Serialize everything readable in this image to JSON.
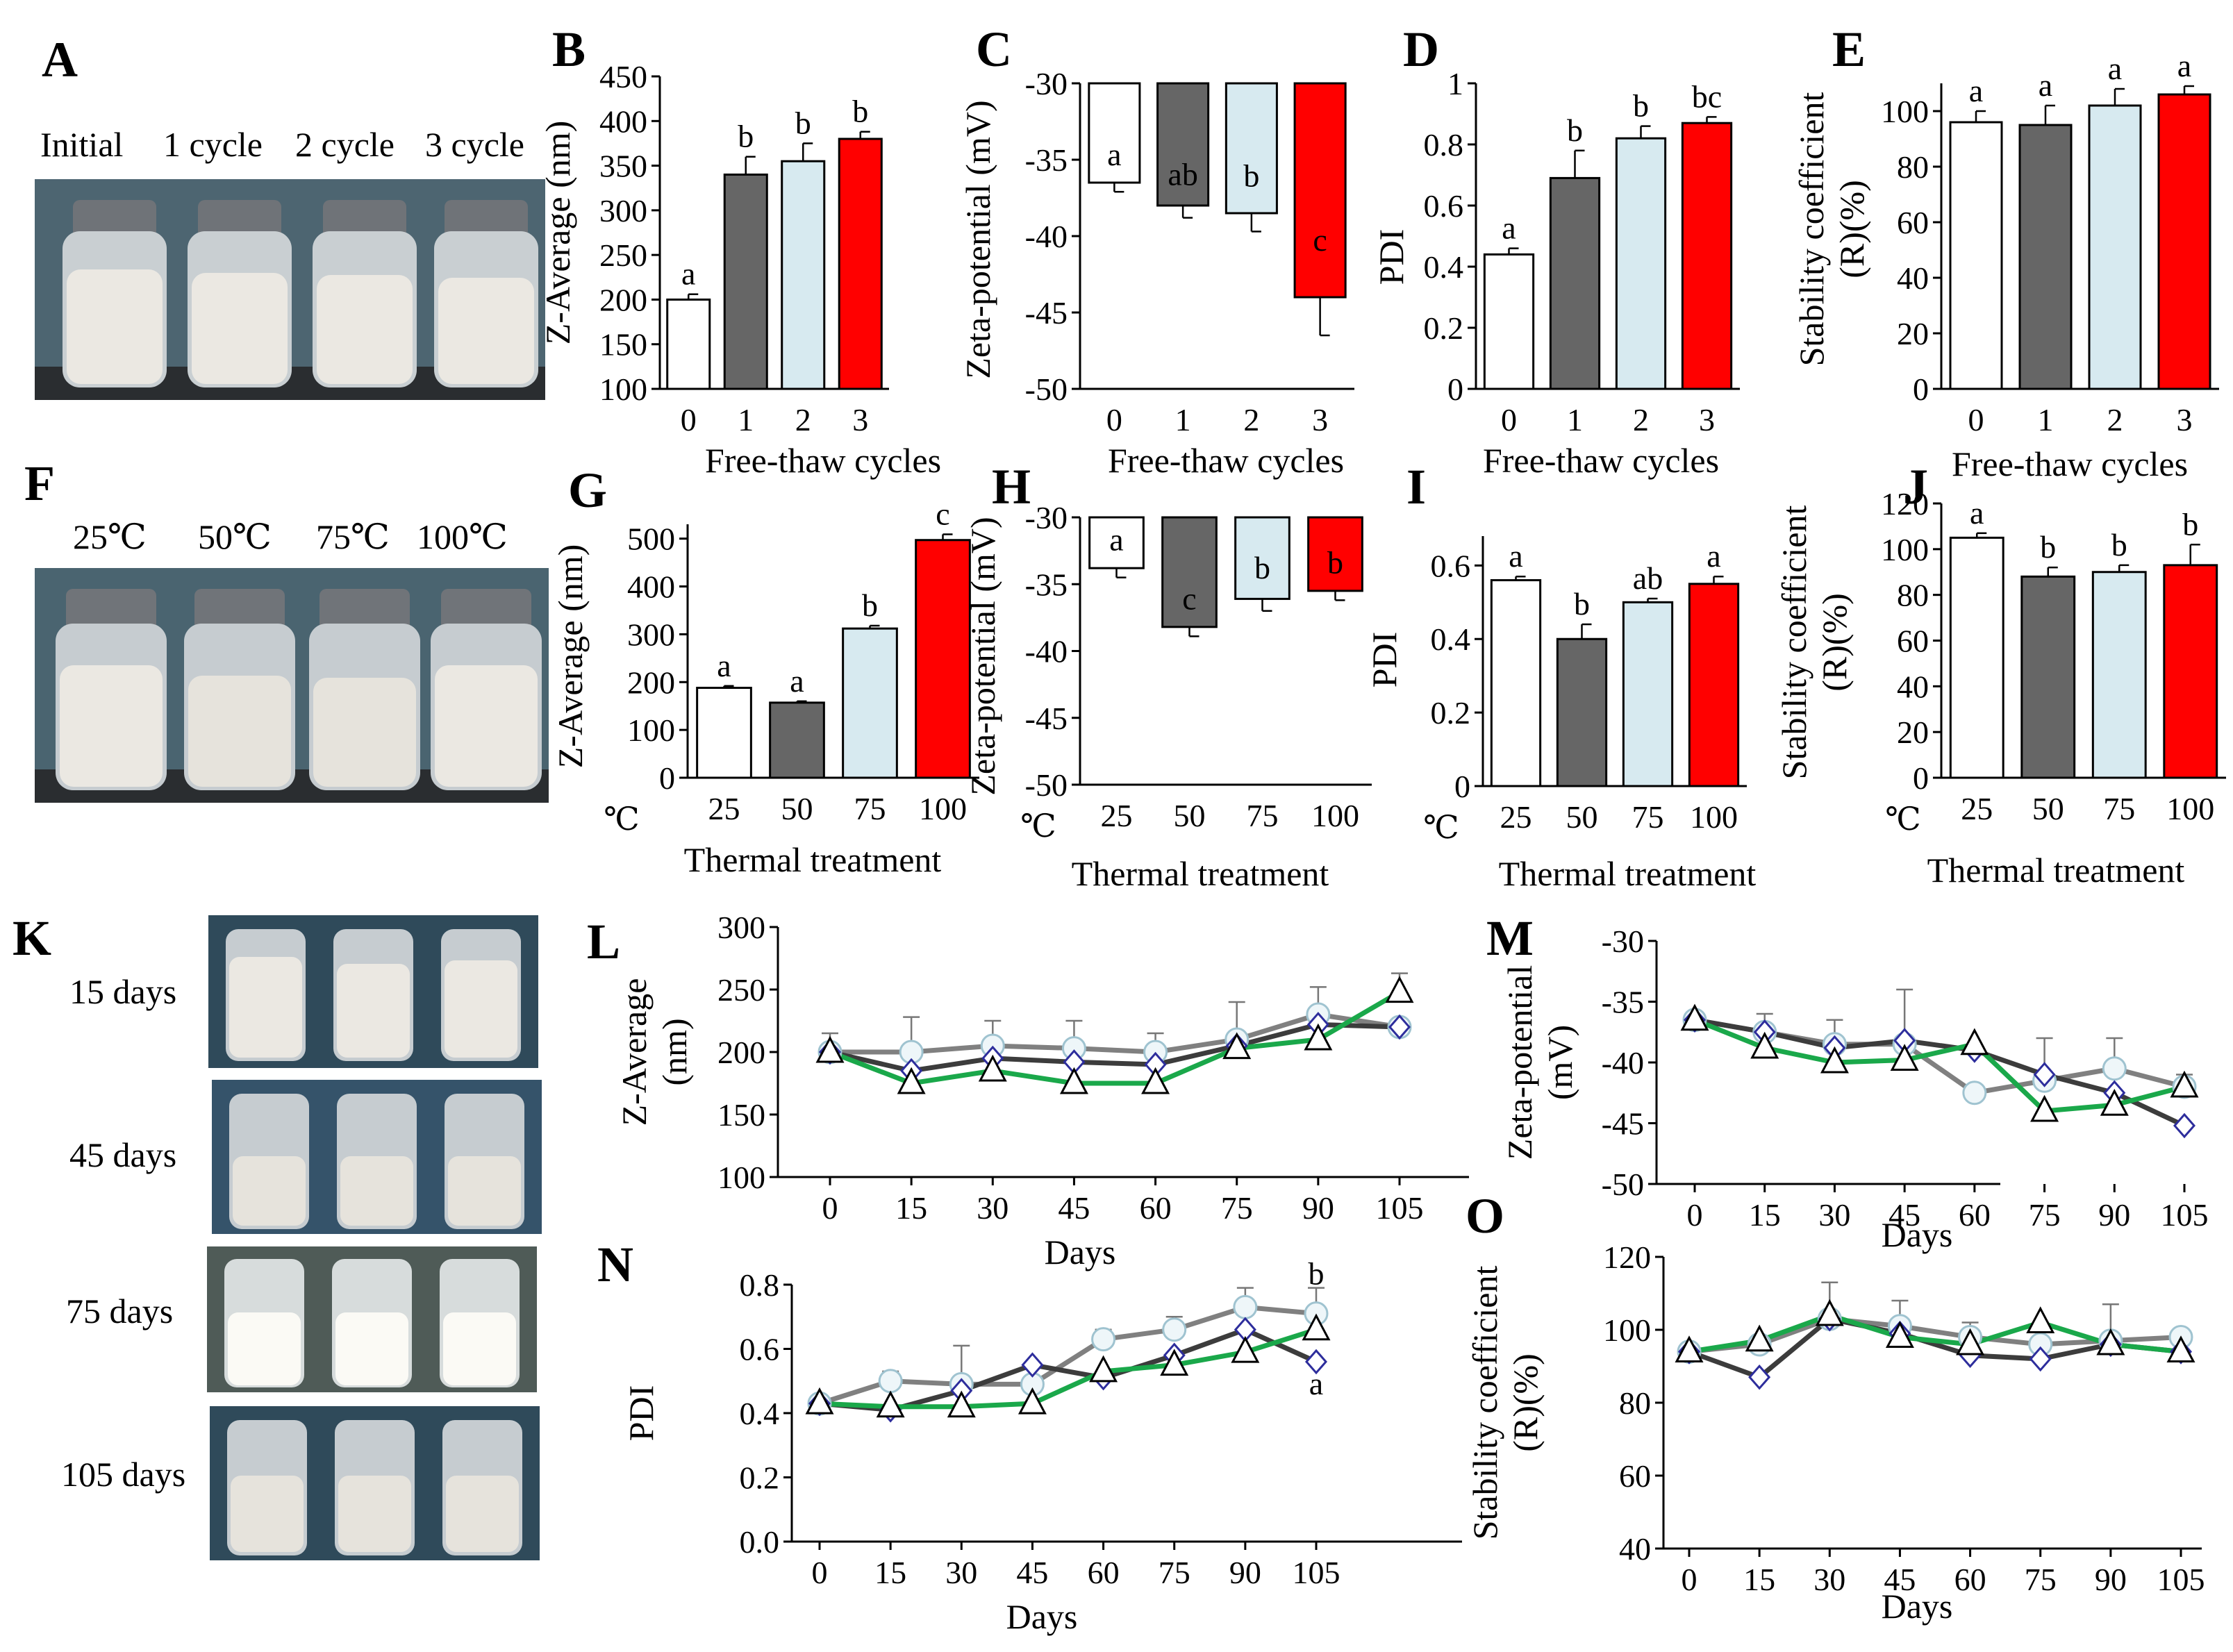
{
  "colors": {
    "white": "#ffffff",
    "gray": "#666666",
    "lightblue": "#d7eaf0",
    "red": "#ff0000",
    "green": "#1aa84a",
    "darkgray": "#3c3c3c",
    "midgray": "#808080",
    "navy": "#2d2d9c",
    "circle_fill": "#eef6f9"
  },
  "panels": {
    "A": {
      "letter": "A",
      "labels": [
        "Initial",
        "1 cycle",
        "2 cycle",
        "3 cycle"
      ]
    },
    "F": {
      "letter": "F",
      "labels": [
        "25℃",
        "50℃",
        "75℃",
        "100℃"
      ]
    },
    "K": {
      "letter": "K",
      "labels": [
        "15 days",
        "45 days",
        "75 days",
        "105 days"
      ]
    }
  },
  "chart_data": [
    {
      "panel": "B",
      "type": "bar",
      "categories": [
        "0",
        "1",
        "2",
        "3"
      ],
      "values": [
        200,
        340,
        355,
        380
      ],
      "errors": [
        6,
        20,
        20,
        8
      ],
      "letters": [
        "a",
        "b",
        "b",
        "b"
      ],
      "ylabel": "Z-Average (nm)",
      "xlabel": "Free-thaw cycles",
      "ylim": [
        100,
        450
      ],
      "yticks": [
        100,
        150,
        200,
        250,
        300,
        350,
        400,
        450
      ]
    },
    {
      "panel": "C",
      "type": "bar",
      "categories": [
        "0",
        "1",
        "2",
        "3"
      ],
      "values": [
        -36.5,
        -38,
        -38.5,
        -44
      ],
      "errors": [
        0.6,
        0.8,
        1.2,
        2.5
      ],
      "letters": [
        "a",
        "ab",
        "b",
        "c"
      ],
      "ylabel": "Zeta-potential (mV)",
      "xlabel": "Free-thaw cycles",
      "ylim": [
        -50,
        -30
      ],
      "yticks": [
        -50,
        -45,
        -40,
        -35,
        -30
      ]
    },
    {
      "panel": "D",
      "type": "bar",
      "categories": [
        "0",
        "1",
        "2",
        "3"
      ],
      "values": [
        0.44,
        0.69,
        0.82,
        0.87
      ],
      "errors": [
        0.02,
        0.09,
        0.04,
        0.02
      ],
      "letters": [
        "a",
        "b",
        "b",
        "bc"
      ],
      "ylabel": "PDI",
      "xlabel": "Free-thaw cycles",
      "ylim": [
        0,
        1
      ],
      "yticks": [
        0,
        0.2,
        0.4,
        0.6,
        0.8,
        1
      ],
      "ytick_labels": [
        "0",
        "0.2",
        "0.4",
        "0.6",
        "0.8",
        "1"
      ]
    },
    {
      "panel": "E",
      "type": "bar",
      "categories": [
        "0",
        "1",
        "2",
        "3"
      ],
      "values": [
        96,
        95,
        102,
        106
      ],
      "errors": [
        4,
        7,
        6,
        3
      ],
      "letters": [
        "a",
        "a",
        "a",
        "a"
      ],
      "ylabel": "Stability coefficient (R)(%)",
      "xlabel": "Free-thaw cycles",
      "ylim": [
        0,
        110
      ],
      "yticks": [
        0,
        20,
        40,
        60,
        80,
        100
      ]
    },
    {
      "panel": "G",
      "type": "bar",
      "categories": [
        "25",
        "50",
        "75",
        "100"
      ],
      "values": [
        188,
        157,
        312,
        497
      ],
      "errors": [
        4,
        3,
        6,
        12
      ],
      "letters": [
        "a",
        "a",
        "b",
        "c"
      ],
      "ylabel": "Z-Average (nm)",
      "xlabel": "Thermal treatment",
      "unit": "℃",
      "ylim": [
        0,
        530
      ],
      "yticks": [
        0,
        100,
        200,
        300,
        400,
        500
      ]
    },
    {
      "panel": "H",
      "type": "bar",
      "categories": [
        "25",
        "50",
        "75",
        "100"
      ],
      "values": [
        -33.8,
        -38.2,
        -36.1,
        -35.5
      ],
      "errors": [
        0.7,
        0.7,
        0.9,
        0.7
      ],
      "letters": [
        "a",
        "c",
        "b",
        "b"
      ],
      "ylabel": "Zeta-potential (mV)",
      "xlabel": "Thermal treatment",
      "unit": "℃",
      "ylim": [
        -50,
        -30
      ],
      "yticks": [
        -50,
        -45,
        -40,
        -35,
        -30
      ]
    },
    {
      "panel": "I",
      "type": "bar",
      "categories": [
        "25",
        "50",
        "75",
        "100"
      ],
      "values": [
        0.56,
        0.4,
        0.5,
        0.55
      ],
      "errors": [
        0.01,
        0.04,
        0.01,
        0.02
      ],
      "letters": [
        "a",
        "b",
        "ab",
        "a"
      ],
      "ylabel": "PDI",
      "xlabel": "Thermal treatment",
      "unit": "℃",
      "ylim": [
        0,
        0.68
      ],
      "yticks": [
        0,
        0.2,
        0.4,
        0.6
      ]
    },
    {
      "panel": "J",
      "type": "bar",
      "categories": [
        "25",
        "50",
        "75",
        "100"
      ],
      "values": [
        105,
        88,
        90,
        93
      ],
      "errors": [
        2,
        4,
        3,
        9
      ],
      "letters": [
        "a",
        "b",
        "b",
        "b"
      ],
      "ylabel": "Stability coefficient (R)(%)",
      "xlabel": "Thermal treatment",
      "unit": "℃",
      "ylim": [
        0,
        120
      ],
      "yticks": [
        0,
        20,
        40,
        60,
        80,
        100,
        120
      ]
    },
    {
      "panel": "L",
      "type": "line",
      "x": [
        0,
        15,
        30,
        45,
        60,
        75,
        90,
        105
      ],
      "xlabel": "Days",
      "ylabel": "Z-Average (nm)",
      "ylim": [
        100,
        300
      ],
      "yticks": [
        100,
        150,
        200,
        250,
        300
      ],
      "series": [
        {
          "name": "circle",
          "marker": "circle",
          "values": [
            200,
            200,
            205,
            203,
            200,
            210,
            230,
            220
          ],
          "errors": [
            15,
            28,
            20,
            22,
            15,
            30,
            22,
            0
          ]
        },
        {
          "name": "diamond",
          "marker": "diamond",
          "values": [
            200,
            185,
            195,
            192,
            190,
            205,
            222,
            220
          ],
          "errors": [
            0,
            0,
            0,
            0,
            0,
            0,
            0,
            0
          ]
        },
        {
          "name": "triangle",
          "marker": "triangle",
          "values": [
            200,
            175,
            185,
            175,
            175,
            203,
            210,
            248
          ],
          "errors": [
            0,
            0,
            0,
            0,
            0,
            0,
            0,
            15
          ]
        }
      ]
    },
    {
      "panel": "M",
      "type": "line",
      "x": [
        0,
        15,
        30,
        45,
        60,
        75,
        90,
        105
      ],
      "xlabel": "Days",
      "ylabel": "Zeta-potential (mV)",
      "ylim": [
        -50,
        -30
      ],
      "yticks": [
        -50,
        -45,
        -40,
        -35,
        -30
      ],
      "series": [
        {
          "name": "circle",
          "marker": "circle",
          "values": [
            -36.5,
            -37.5,
            -38.5,
            -38.5,
            -42.5,
            -41.5,
            -40.5,
            -42
          ],
          "errors": [
            0,
            1.5,
            2,
            4.5,
            0,
            0,
            2.5,
            0
          ]
        },
        {
          "name": "diamond",
          "marker": "diamond",
          "values": [
            -36.5,
            -37.5,
            -38.8,
            -38.2,
            -39,
            -41,
            -42.5,
            -45.2
          ],
          "errors": [
            0,
            0,
            0,
            0,
            0,
            3,
            0,
            0
          ]
        },
        {
          "name": "triangle",
          "marker": "triangle",
          "values": [
            -36.5,
            -38.8,
            -40,
            -39.8,
            -38.5,
            -44,
            -43.5,
            -42
          ],
          "errors": [
            0,
            0,
            0,
            0,
            0,
            0,
            0,
            1
          ]
        }
      ]
    },
    {
      "panel": "N",
      "type": "line",
      "x": [
        0,
        15,
        30,
        45,
        60,
        75,
        90,
        105
      ],
      "xlabel": "Days",
      "ylabel": "PDI",
      "ylim": [
        0,
        0.8
      ],
      "yticks": [
        0,
        0.2,
        0.4,
        0.6,
        0.8
      ],
      "ytick_labels": [
        "0.0",
        "0.2",
        "0.4",
        "0.6",
        "0.8"
      ],
      "annotations": [
        "b",
        "a"
      ],
      "series": [
        {
          "name": "circle",
          "marker": "circle",
          "values": [
            0.43,
            0.5,
            0.49,
            0.49,
            0.63,
            0.66,
            0.73,
            0.71
          ],
          "errors": [
            0.02,
            0.03,
            0.12,
            0,
            0.03,
            0.04,
            0.06,
            0.08
          ]
        },
        {
          "name": "diamond",
          "marker": "diamond",
          "values": [
            0.43,
            0.41,
            0.47,
            0.55,
            0.51,
            0.58,
            0.66,
            0.56
          ],
          "errors": [
            0,
            0,
            0,
            0,
            0,
            0,
            0,
            0
          ]
        },
        {
          "name": "triangle",
          "marker": "triangle",
          "values": [
            0.43,
            0.42,
            0.42,
            0.43,
            0.53,
            0.55,
            0.59,
            0.66
          ],
          "errors": [
            0,
            0,
            0,
            0,
            0,
            0,
            0,
            0
          ]
        }
      ]
    },
    {
      "panel": "O",
      "type": "line",
      "x": [
        0,
        15,
        30,
        45,
        60,
        75,
        90,
        105
      ],
      "xlabel": "Days",
      "ylabel": "Stability coefficient (R)(%)",
      "ylim": [
        40,
        120
      ],
      "yticks": [
        40,
        60,
        80,
        100,
        120
      ],
      "series": [
        {
          "name": "circle",
          "marker": "circle",
          "values": [
            94,
            96,
            103,
            101,
            98,
            96,
            97,
            98
          ],
          "errors": [
            0,
            0,
            10,
            7,
            4,
            6,
            10,
            0
          ]
        },
        {
          "name": "diamond",
          "marker": "diamond",
          "values": [
            94,
            87,
            103,
            99,
            93,
            92,
            96,
            94
          ],
          "errors": [
            0,
            0,
            0,
            0,
            0,
            0,
            0,
            0
          ]
        },
        {
          "name": "triangle",
          "marker": "triangle",
          "values": [
            94,
            97,
            104,
            98,
            96,
            102,
            96,
            94
          ],
          "errors": [
            0,
            0,
            0,
            0,
            0,
            0,
            0,
            0
          ]
        }
      ]
    }
  ]
}
